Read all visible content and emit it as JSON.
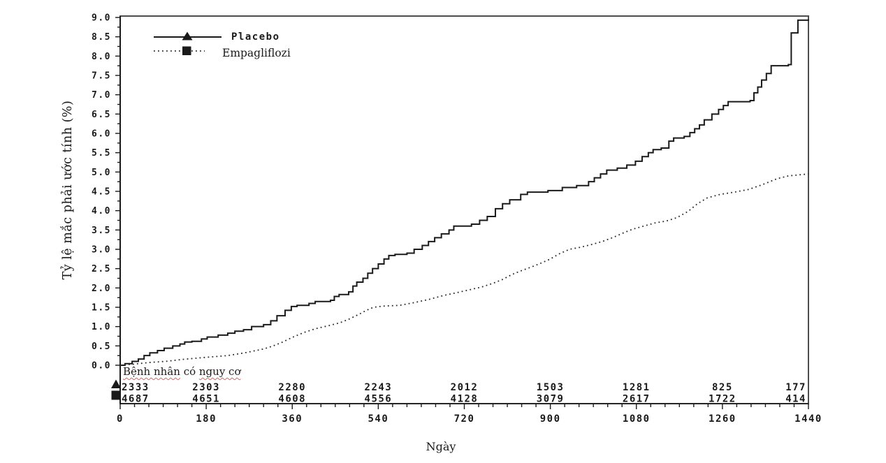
{
  "figure": {
    "background": "#ffffff",
    "frame_color": "#4d4d4d",
    "axis_color": "#1a1a1a",
    "dotted_color": "#2a2a2a",
    "text_color": "#1a1a1a",
    "spellcheck_underline_color": "#e06060"
  },
  "chart_data": {
    "type": "line",
    "title": "",
    "xlabel": "Ngày",
    "ylabel": "Tỷ lệ mắc phải ước tính (%)",
    "xlim": [
      0,
      1440
    ],
    "ylim": [
      0.0,
      9.0
    ],
    "grid": false,
    "legend_position": "top-left-inside",
    "x_major_ticks": [
      0,
      180,
      360,
      540,
      720,
      900,
      1080,
      1260,
      1440
    ],
    "x_minor_step": 30,
    "y_major_step": 0.5,
    "y_minor_step": 0.25,
    "y_tick_labels": [
      "0.0",
      "0.5",
      "1.0",
      "1.5",
      "2.0",
      "2.5",
      "3.0",
      "3.5",
      "4.0",
      "4.5",
      "5.0",
      "5.5",
      "6.0",
      "6.5",
      "7.0",
      "7.5",
      "8.0",
      "8.5",
      "9.0"
    ],
    "series": [
      {
        "name": "Placebo",
        "line_style": "solid",
        "marker": "triangle",
        "step": true,
        "points": [
          [
            0,
            0
          ],
          [
            10,
            0.04
          ],
          [
            25,
            0.1
          ],
          [
            38,
            0.16
          ],
          [
            50,
            0.25
          ],
          [
            62,
            0.32
          ],
          [
            78,
            0.38
          ],
          [
            92,
            0.44
          ],
          [
            110,
            0.5
          ],
          [
            125,
            0.55
          ],
          [
            135,
            0.6
          ],
          [
            150,
            0.62
          ],
          [
            170,
            0.68
          ],
          [
            182,
            0.73
          ],
          [
            205,
            0.78
          ],
          [
            225,
            0.83
          ],
          [
            240,
            0.88
          ],
          [
            258,
            0.92
          ],
          [
            275,
            1.0
          ],
          [
            300,
            1.05
          ],
          [
            315,
            1.15
          ],
          [
            328,
            1.28
          ],
          [
            345,
            1.42
          ],
          [
            358,
            1.52
          ],
          [
            370,
            1.55
          ],
          [
            395,
            1.6
          ],
          [
            408,
            1.65
          ],
          [
            440,
            1.68
          ],
          [
            448,
            1.78
          ],
          [
            458,
            1.83
          ],
          [
            478,
            1.9
          ],
          [
            487,
            2.05
          ],
          [
            495,
            2.15
          ],
          [
            508,
            2.25
          ],
          [
            518,
            2.38
          ],
          [
            528,
            2.5
          ],
          [
            540,
            2.62
          ],
          [
            552,
            2.75
          ],
          [
            562,
            2.84
          ],
          [
            575,
            2.87
          ],
          [
            600,
            2.9
          ],
          [
            615,
            3.0
          ],
          [
            632,
            3.1
          ],
          [
            645,
            3.2
          ],
          [
            658,
            3.3
          ],
          [
            672,
            3.4
          ],
          [
            688,
            3.5
          ],
          [
            698,
            3.6
          ],
          [
            735,
            3.65
          ],
          [
            752,
            3.75
          ],
          [
            768,
            3.85
          ],
          [
            785,
            4.05
          ],
          [
            800,
            4.18
          ],
          [
            815,
            4.28
          ],
          [
            838,
            4.42
          ],
          [
            852,
            4.48
          ],
          [
            895,
            4.52
          ],
          [
            925,
            4.6
          ],
          [
            955,
            4.65
          ],
          [
            980,
            4.75
          ],
          [
            992,
            4.85
          ],
          [
            1005,
            4.95
          ],
          [
            1018,
            5.05
          ],
          [
            1040,
            5.1
          ],
          [
            1060,
            5.18
          ],
          [
            1078,
            5.28
          ],
          [
            1092,
            5.4
          ],
          [
            1105,
            5.5
          ],
          [
            1115,
            5.58
          ],
          [
            1132,
            5.62
          ],
          [
            1148,
            5.8
          ],
          [
            1158,
            5.88
          ],
          [
            1180,
            5.92
          ],
          [
            1192,
            6.02
          ],
          [
            1202,
            6.12
          ],
          [
            1212,
            6.22
          ],
          [
            1222,
            6.35
          ],
          [
            1238,
            6.5
          ],
          [
            1252,
            6.62
          ],
          [
            1262,
            6.72
          ],
          [
            1272,
            6.82
          ],
          [
            1318,
            6.85
          ],
          [
            1326,
            7.05
          ],
          [
            1334,
            7.2
          ],
          [
            1342,
            7.38
          ],
          [
            1352,
            7.55
          ],
          [
            1362,
            7.75
          ],
          [
            1398,
            7.78
          ],
          [
            1404,
            8.6
          ],
          [
            1418,
            8.93
          ],
          [
            1440,
            8.95
          ]
        ]
      },
      {
        "name": "Empagliflozi",
        "line_style": "dotted",
        "marker": "square",
        "step": false,
        "points": [
          [
            0,
            0
          ],
          [
            30,
            0.03
          ],
          [
            60,
            0.07
          ],
          [
            95,
            0.1
          ],
          [
            130,
            0.15
          ],
          [
            175,
            0.2
          ],
          [
            225,
            0.25
          ],
          [
            260,
            0.32
          ],
          [
            300,
            0.42
          ],
          [
            320,
            0.5
          ],
          [
            340,
            0.6
          ],
          [
            360,
            0.72
          ],
          [
            385,
            0.85
          ],
          [
            410,
            0.95
          ],
          [
            435,
            1.02
          ],
          [
            460,
            1.1
          ],
          [
            480,
            1.2
          ],
          [
            500,
            1.32
          ],
          [
            515,
            1.42
          ],
          [
            530,
            1.5
          ],
          [
            550,
            1.53
          ],
          [
            585,
            1.55
          ],
          [
            615,
            1.62
          ],
          [
            645,
            1.7
          ],
          [
            675,
            1.8
          ],
          [
            705,
            1.88
          ],
          [
            730,
            1.95
          ],
          [
            755,
            2.02
          ],
          [
            780,
            2.12
          ],
          [
            800,
            2.22
          ],
          [
            820,
            2.35
          ],
          [
            840,
            2.45
          ],
          [
            862,
            2.55
          ],
          [
            882,
            2.65
          ],
          [
            900,
            2.75
          ],
          [
            918,
            2.88
          ],
          [
            940,
            3.0
          ],
          [
            962,
            3.05
          ],
          [
            985,
            3.12
          ],
          [
            1008,
            3.2
          ],
          [
            1030,
            3.3
          ],
          [
            1052,
            3.42
          ],
          [
            1072,
            3.52
          ],
          [
            1095,
            3.6
          ],
          [
            1118,
            3.68
          ],
          [
            1142,
            3.73
          ],
          [
            1165,
            3.82
          ],
          [
            1188,
            3.98
          ],
          [
            1208,
            4.18
          ],
          [
            1228,
            4.33
          ],
          [
            1255,
            4.42
          ],
          [
            1285,
            4.48
          ],
          [
            1315,
            4.55
          ],
          [
            1345,
            4.68
          ],
          [
            1375,
            4.83
          ],
          [
            1398,
            4.9
          ],
          [
            1440,
            4.95
          ]
        ]
      }
    ],
    "risk_table": {
      "title_parts": [
        {
          "text": "Bệnh nhân",
          "misspelled": true
        },
        {
          "text": " có ",
          "misspelled": false
        },
        {
          "text": "nguy cơ",
          "misspelled": true
        }
      ],
      "rows": [
        {
          "series": "Placebo",
          "marker": "triangle",
          "values": [
            2333,
            2303,
            2280,
            2243,
            2012,
            1503,
            1281,
            825,
            177
          ]
        },
        {
          "series": "Empagliflozi",
          "marker": "square",
          "values": [
            4687,
            4651,
            4608,
            4556,
            4128,
            3079,
            2617,
            1722,
            414
          ]
        }
      ]
    }
  }
}
